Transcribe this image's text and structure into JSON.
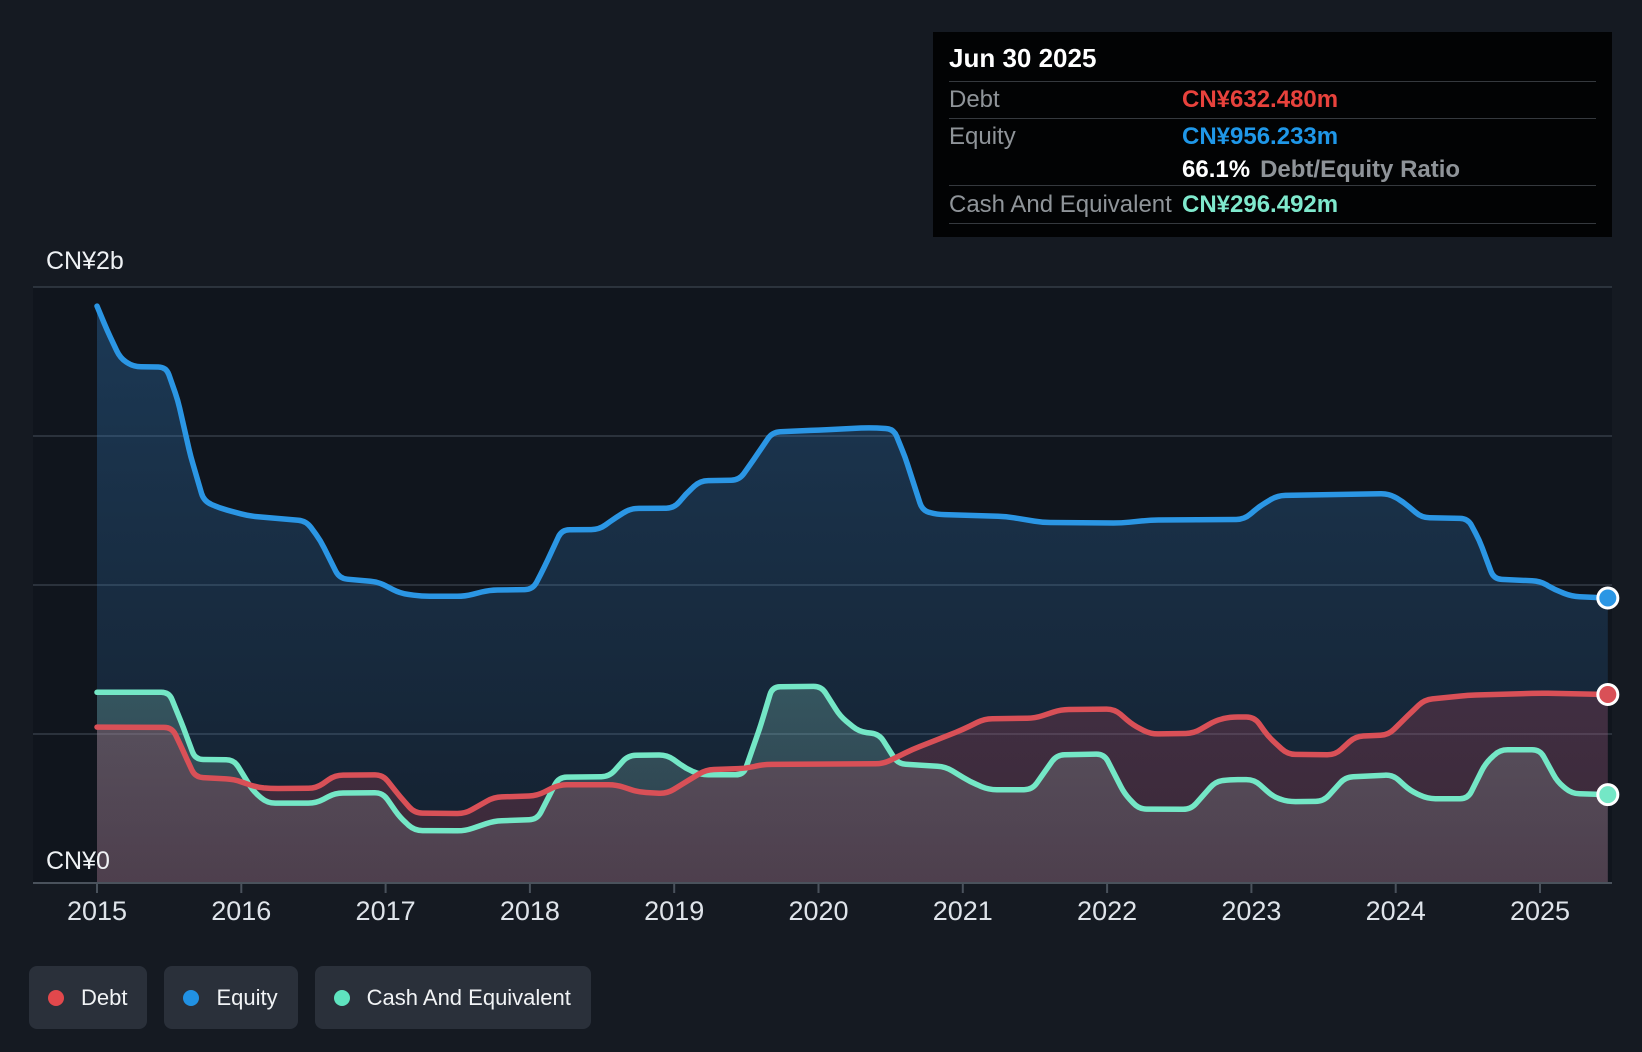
{
  "tooltip": {
    "date": "Jun 30 2025",
    "debt_label": "Debt",
    "debt_value": "CN¥632.480m",
    "debt_color": "#e8423c",
    "equity_label": "Equity",
    "equity_value": "CN¥956.233m",
    "equity_color": "#1f97e8",
    "ratio_value": "66.1%",
    "ratio_label": "Debt/Equity Ratio",
    "cash_label": "Cash And Equivalent",
    "cash_value": "CN¥296.492m",
    "cash_color": "#7fe9cd"
  },
  "legend": [
    {
      "label": "Debt",
      "color": "#e2484c"
    },
    {
      "label": "Equity",
      "color": "#2191e3"
    },
    {
      "label": "Cash And Equivalent",
      "color": "#5fe3bf"
    }
  ],
  "chart_data": {
    "type": "area",
    "unit": "CN¥ millions",
    "x_domain": [
      2015,
      2025.5
    ],
    "ylim_m": [
      0,
      2000
    ],
    "y_gridlines_m": [
      0,
      500,
      1000,
      1500,
      2000
    ],
    "y_top_label": "CN¥2b",
    "y_bottom_label": "CN¥0",
    "x_tick_years": [
      "2015",
      "2016",
      "2017",
      "2018",
      "2019",
      "2020",
      "2021",
      "2022",
      "2023",
      "2024",
      "2025"
    ],
    "legend_position": "bottom-left",
    "grid": true,
    "hover_point": {
      "date": "Jun 30 2025",
      "debt_m": 632.48,
      "equity_m": 956.233,
      "cash_m": 296.492,
      "debt_equity_ratio_pct": 66.1
    },
    "style": {
      "page_bg": "#151a22",
      "plot_bg": "#10151d",
      "grid_color": "#343c46",
      "axis_color": "#4a525c",
      "tick_label_color": "#dfe4ea",
      "y_label_color": "#eef1f4",
      "marker_stroke": "#ffffff"
    },
    "series": [
      {
        "name": "Equity",
        "color": "#2b96e4",
        "fill_top": "rgba(55,140,215,0.30)",
        "fill_bottom": "rgba(55,130,200,0.10)",
        "points": [
          [
            2015.0,
            1936
          ],
          [
            2015.07,
            1855
          ],
          [
            2015.16,
            1762
          ],
          [
            2015.25,
            1733
          ],
          [
            2015.48,
            1731
          ],
          [
            2015.56,
            1620
          ],
          [
            2015.65,
            1430
          ],
          [
            2015.74,
            1282
          ],
          [
            2015.85,
            1258
          ],
          [
            2016.05,
            1232
          ],
          [
            2016.45,
            1215
          ],
          [
            2016.55,
            1148
          ],
          [
            2016.68,
            1022
          ],
          [
            2016.95,
            1010
          ],
          [
            2017.1,
            972
          ],
          [
            2017.25,
            962
          ],
          [
            2017.55,
            962
          ],
          [
            2017.72,
            983
          ],
          [
            2018.02,
            985
          ],
          [
            2018.1,
            1060
          ],
          [
            2018.22,
            1185
          ],
          [
            2018.48,
            1186
          ],
          [
            2018.6,
            1228
          ],
          [
            2018.7,
            1257
          ],
          [
            2019.0,
            1258
          ],
          [
            2019.08,
            1305
          ],
          [
            2019.18,
            1350
          ],
          [
            2019.45,
            1352
          ],
          [
            2019.55,
            1420
          ],
          [
            2019.68,
            1513
          ],
          [
            2020.0,
            1520
          ],
          [
            2020.35,
            1528
          ],
          [
            2020.52,
            1524
          ],
          [
            2020.6,
            1430
          ],
          [
            2020.72,
            1250
          ],
          [
            2020.82,
            1237
          ],
          [
            2021.3,
            1230
          ],
          [
            2021.55,
            1210
          ],
          [
            2022.1,
            1208
          ],
          [
            2022.3,
            1218
          ],
          [
            2022.95,
            1220
          ],
          [
            2023.05,
            1262
          ],
          [
            2023.18,
            1300
          ],
          [
            2023.95,
            1307
          ],
          [
            2024.05,
            1280
          ],
          [
            2024.18,
            1226
          ],
          [
            2024.5,
            1223
          ],
          [
            2024.58,
            1150
          ],
          [
            2024.68,
            1020
          ],
          [
            2025.0,
            1013
          ],
          [
            2025.1,
            985
          ],
          [
            2025.22,
            962
          ],
          [
            2025.47,
            956.233
          ]
        ]
      },
      {
        "name": "Cash And Equivalent",
        "color": "#74e7c6",
        "fill_top": "rgba(150,230,210,0.24)",
        "fill_bottom": "rgba(165,210,212,0.16)",
        "points": [
          [
            2015.0,
            640
          ],
          [
            2015.5,
            640
          ],
          [
            2015.6,
            520
          ],
          [
            2015.68,
            415
          ],
          [
            2015.95,
            413
          ],
          [
            2016.08,
            310
          ],
          [
            2016.18,
            268
          ],
          [
            2016.52,
            268
          ],
          [
            2016.65,
            302
          ],
          [
            2016.98,
            303
          ],
          [
            2017.1,
            220
          ],
          [
            2017.2,
            176
          ],
          [
            2017.55,
            175
          ],
          [
            2017.75,
            208
          ],
          [
            2018.05,
            213
          ],
          [
            2018.2,
            355
          ],
          [
            2018.55,
            357
          ],
          [
            2018.68,
            428
          ],
          [
            2018.95,
            430
          ],
          [
            2019.08,
            385
          ],
          [
            2019.18,
            363
          ],
          [
            2019.48,
            363
          ],
          [
            2019.6,
            530
          ],
          [
            2019.68,
            658
          ],
          [
            2020.02,
            660
          ],
          [
            2020.15,
            560
          ],
          [
            2020.28,
            508
          ],
          [
            2020.42,
            500
          ],
          [
            2020.55,
            400
          ],
          [
            2020.88,
            390
          ],
          [
            2021.05,
            340
          ],
          [
            2021.18,
            313
          ],
          [
            2021.48,
            313
          ],
          [
            2021.65,
            430
          ],
          [
            2021.98,
            433
          ],
          [
            2022.12,
            300
          ],
          [
            2022.22,
            248
          ],
          [
            2022.58,
            247
          ],
          [
            2022.75,
            340
          ],
          [
            2022.85,
            347
          ],
          [
            2023.02,
            347
          ],
          [
            2023.15,
            290
          ],
          [
            2023.25,
            273
          ],
          [
            2023.5,
            274
          ],
          [
            2023.65,
            355
          ],
          [
            2023.98,
            363
          ],
          [
            2024.1,
            310
          ],
          [
            2024.22,
            283
          ],
          [
            2024.5,
            283
          ],
          [
            2024.62,
            400
          ],
          [
            2024.72,
            447
          ],
          [
            2025.0,
            447
          ],
          [
            2025.12,
            340
          ],
          [
            2025.22,
            300
          ],
          [
            2025.47,
            296.492
          ]
        ]
      },
      {
        "name": "Debt",
        "color": "#d95057",
        "fill_top": "rgba(214,72,92,0.22)",
        "fill_bottom": "rgba(214,72,92,0.20)",
        "points": [
          [
            2015.0,
            523
          ],
          [
            2015.52,
            522
          ],
          [
            2015.6,
            440
          ],
          [
            2015.68,
            355
          ],
          [
            2015.95,
            348
          ],
          [
            2016.1,
            322
          ],
          [
            2016.2,
            317
          ],
          [
            2016.52,
            318
          ],
          [
            2016.65,
            362
          ],
          [
            2016.98,
            363
          ],
          [
            2017.1,
            290
          ],
          [
            2017.2,
            235
          ],
          [
            2017.55,
            233
          ],
          [
            2017.75,
            288
          ],
          [
            2018.05,
            293
          ],
          [
            2018.2,
            330
          ],
          [
            2018.6,
            330
          ],
          [
            2018.75,
            305
          ],
          [
            2018.95,
            300
          ],
          [
            2019.1,
            345
          ],
          [
            2019.22,
            380
          ],
          [
            2019.5,
            385
          ],
          [
            2019.62,
            398
          ],
          [
            2020.45,
            400
          ],
          [
            2020.65,
            448
          ],
          [
            2021.0,
            515
          ],
          [
            2021.15,
            551
          ],
          [
            2021.5,
            553
          ],
          [
            2021.68,
            582
          ],
          [
            2022.05,
            584
          ],
          [
            2022.18,
            530
          ],
          [
            2022.3,
            500
          ],
          [
            2022.6,
            502
          ],
          [
            2022.75,
            545
          ],
          [
            2022.85,
            557
          ],
          [
            2023.02,
            557
          ],
          [
            2023.12,
            490
          ],
          [
            2023.25,
            432
          ],
          [
            2023.58,
            430
          ],
          [
            2023.72,
            492
          ],
          [
            2023.95,
            497
          ],
          [
            2024.08,
            560
          ],
          [
            2024.2,
            615
          ],
          [
            2024.5,
            630
          ],
          [
            2025.0,
            637
          ],
          [
            2025.47,
            632.48
          ]
        ]
      }
    ]
  }
}
